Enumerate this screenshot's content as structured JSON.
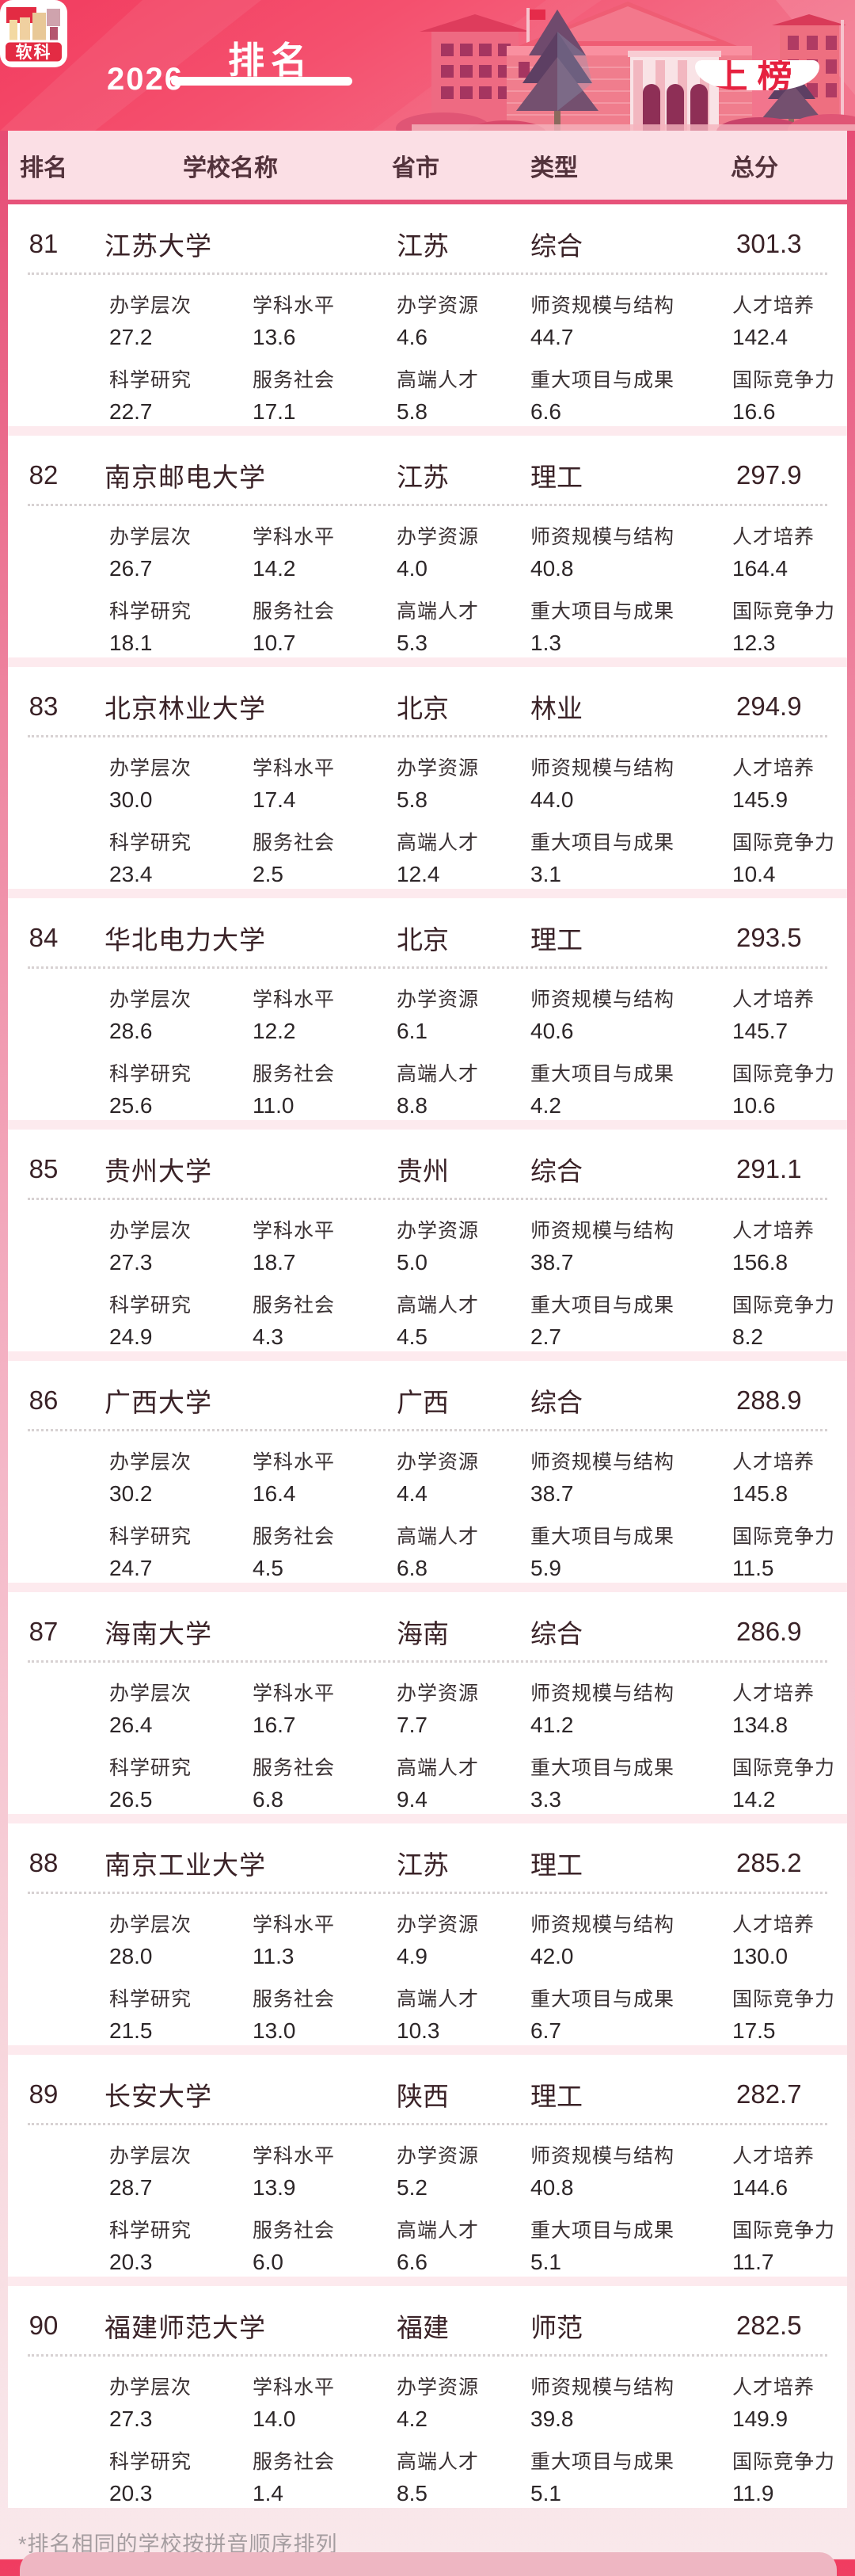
{
  "banner": {
    "logo_text": "软科",
    "year": "2026",
    "title": "排名",
    "badge": "上榜"
  },
  "table_header": {
    "rank": "排名",
    "school": "学校名称",
    "province": "省市",
    "type": "类型",
    "score": "总分"
  },
  "metric_labels": [
    "办学层次",
    "学科水平",
    "办学资源",
    "师资规模与结构",
    "人才培养",
    "科学研究",
    "服务社会",
    "高端人才",
    "重大项目与成果",
    "国际竞争力"
  ],
  "schools": [
    {
      "rank": "81",
      "name": "江苏大学",
      "province": "江苏",
      "type": "综合",
      "score": "301.3",
      "metrics": [
        "27.2",
        "13.6",
        "4.6",
        "44.7",
        "142.4",
        "22.7",
        "17.1",
        "5.8",
        "6.6",
        "16.6"
      ]
    },
    {
      "rank": "82",
      "name": "南京邮电大学",
      "province": "江苏",
      "type": "理工",
      "score": "297.9",
      "metrics": [
        "26.7",
        "14.2",
        "4.0",
        "40.8",
        "164.4",
        "18.1",
        "10.7",
        "5.3",
        "1.3",
        "12.3"
      ]
    },
    {
      "rank": "83",
      "name": "北京林业大学",
      "province": "北京",
      "type": "林业",
      "score": "294.9",
      "metrics": [
        "30.0",
        "17.4",
        "5.8",
        "44.0",
        "145.9",
        "23.4",
        "2.5",
        "12.4",
        "3.1",
        "10.4"
      ]
    },
    {
      "rank": "84",
      "name": "华北电力大学",
      "province": "北京",
      "type": "理工",
      "score": "293.5",
      "metrics": [
        "28.6",
        "12.2",
        "6.1",
        "40.6",
        "145.7",
        "25.6",
        "11.0",
        "8.8",
        "4.2",
        "10.6"
      ]
    },
    {
      "rank": "85",
      "name": "贵州大学",
      "province": "贵州",
      "type": "综合",
      "score": "291.1",
      "metrics": [
        "27.3",
        "18.7",
        "5.0",
        "38.7",
        "156.8",
        "24.9",
        "4.3",
        "4.5",
        "2.7",
        "8.2"
      ]
    },
    {
      "rank": "86",
      "name": "广西大学",
      "province": "广西",
      "type": "综合",
      "score": "288.9",
      "metrics": [
        "30.2",
        "16.4",
        "4.4",
        "38.7",
        "145.8",
        "24.7",
        "4.5",
        "6.8",
        "5.9",
        "11.5"
      ]
    },
    {
      "rank": "87",
      "name": "海南大学",
      "province": "海南",
      "type": "综合",
      "score": "286.9",
      "metrics": [
        "26.4",
        "16.7",
        "7.7",
        "41.2",
        "134.8",
        "26.5",
        "6.8",
        "9.4",
        "3.3",
        "14.2"
      ]
    },
    {
      "rank": "88",
      "name": "南京工业大学",
      "province": "江苏",
      "type": "理工",
      "score": "285.2",
      "metrics": [
        "28.0",
        "11.3",
        "4.9",
        "42.0",
        "130.0",
        "21.5",
        "13.0",
        "10.3",
        "6.7",
        "17.5"
      ]
    },
    {
      "rank": "89",
      "name": "长安大学",
      "province": "陕西",
      "type": "理工",
      "score": "282.7",
      "metrics": [
        "28.7",
        "13.9",
        "5.2",
        "40.8",
        "144.6",
        "20.3",
        "6.0",
        "6.6",
        "5.1",
        "11.7"
      ]
    },
    {
      "rank": "90",
      "name": "福建师范大学",
      "province": "福建",
      "type": "师范",
      "score": "282.5",
      "metrics": [
        "27.3",
        "14.0",
        "4.2",
        "39.8",
        "149.9",
        "20.3",
        "1.4",
        "8.5",
        "5.1",
        "11.9"
      ]
    }
  ],
  "footnote": "*排名相同的学校按拼音顺序排列",
  "colors": {
    "banner_red": "#f23c5f",
    "badge_text_red": "#e6213f",
    "header_band_pink": "#fbdfe5",
    "list_bg_pink": "#fdeaee",
    "card_bg": "#ffffff",
    "title_text": "#3a2227",
    "metric_text": "#2c2628",
    "footnote_gray": "#a59da0",
    "bottom_bar_pink": "#eeb6c2"
  }
}
